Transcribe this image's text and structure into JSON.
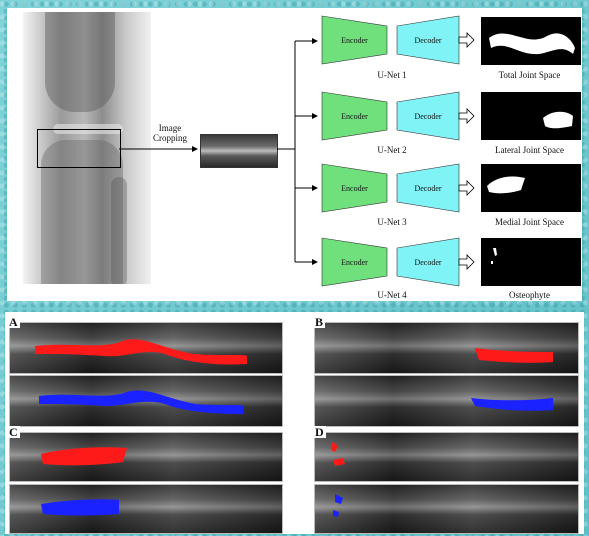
{
  "top": {
    "crop_label_line1": "Image",
    "crop_label_line2": "Cropping",
    "encoder_label": "Encoder",
    "decoder_label": "Decoder",
    "nets": [
      {
        "name": "U-Net 1",
        "output": "Total Joint Space"
      },
      {
        "name": "U-Net 2",
        "output": "Lateral Joint Space"
      },
      {
        "name": "U-Net 3",
        "output": "Medial Joint Space"
      },
      {
        "name": "U-Net 4",
        "output": "Osteophyte"
      }
    ]
  },
  "bottom": {
    "panels": [
      {
        "letter": "A"
      },
      {
        "letter": "B"
      },
      {
        "letter": "C"
      },
      {
        "letter": "D"
      }
    ]
  },
  "colors": {
    "encoder": "#6fe07c",
    "decoder": "#7ff3f5",
    "mask_red": "#ff1a1a",
    "mask_blue": "#1a22ff"
  }
}
